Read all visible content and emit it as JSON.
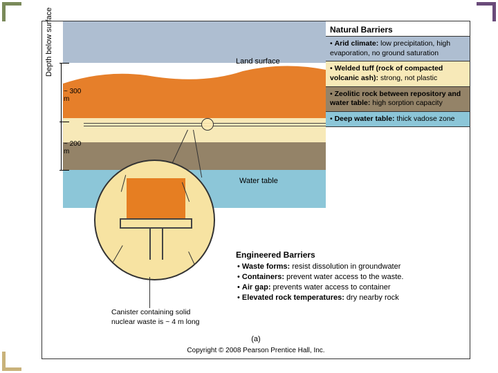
{
  "colors": {
    "sky": "#aebed1",
    "surface": "#e67f2a",
    "tuff": "#f7e9b8",
    "zeolite": "#948368",
    "water": "#8cc6d8",
    "callout_bg": "#f7e3a2",
    "waste": "#e67e22",
    "border": "#333333"
  },
  "labels": {
    "axis": "Depth below surface",
    "land_surface": "Land surface",
    "water_table": "Water table",
    "depth_upper": "~ 300 m",
    "depth_lower": "~ 200 m"
  },
  "natural_barriers": {
    "title": "Natural Barriers",
    "rows": [
      {
        "bold": "Arid climate:",
        "text": " low precipitation, high evaporation, no ground saturation",
        "bg": "#aebed1"
      },
      {
        "bold": "Welded tuff (rock of compacted volcanic ash):",
        "text": " strong, not plastic",
        "bg": "#f7e9b8"
      },
      {
        "bold": "Zeolitic rock between repository and water table:",
        "text": " high sorption capacity",
        "bg": "#948368"
      },
      {
        "bold": "Deep water table:",
        "text": " thick vadose zone",
        "bg": "#8cc6d8"
      }
    ]
  },
  "engineered_barriers": {
    "title": "Engineered Barriers",
    "items": [
      {
        "bold": "Waste forms:",
        "text": " resist dissolution in groundwater"
      },
      {
        "bold": "Containers:",
        "text": " prevent water access to the waste."
      },
      {
        "bold": "Air gap:",
        "text": " prevents water access to container"
      },
      {
        "bold": "Elevated rock temperatures:",
        "text": " dry nearby rock"
      }
    ]
  },
  "canister_caption": "Canister containing solid nuclear waste is ~ 4 m long",
  "figure_letter": "(a)",
  "copyright": "Copyright © 2008 Pearson Prentice Hall, Inc."
}
